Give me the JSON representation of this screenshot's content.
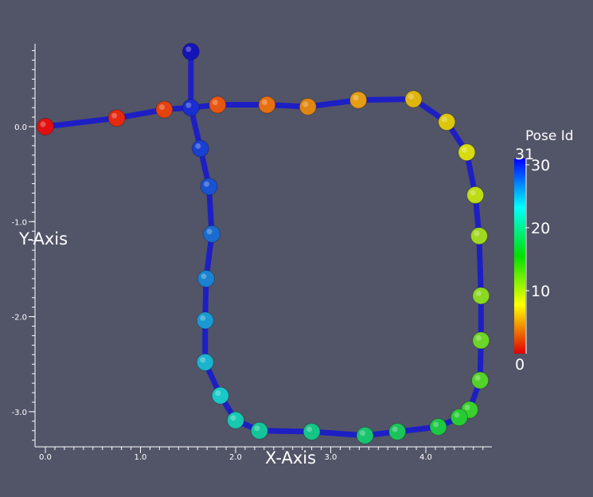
{
  "chart_data": {
    "type": "scatter",
    "xlabel": "X-Axis",
    "ylabel": "Y-Axis",
    "xlim": [
      0.0,
      4.6
    ],
    "ylim": [
      -3.35,
      0.85
    ],
    "x_ticks": [
      "0.0",
      "1.0",
      "2.0",
      "3.0",
      "4.0"
    ],
    "x_tick_values": [
      0.0,
      1.0,
      2.0,
      3.0,
      4.0
    ],
    "y_ticks": [
      "0.0",
      "-1.0",
      "-2.0",
      "-3.0"
    ],
    "y_tick_values": [
      0.0,
      -1.0,
      -2.0,
      -3.0
    ],
    "grid": false,
    "series": [
      {
        "points": [
          {
            "id": 0,
            "x": 0.0,
            "y": 0.0
          },
          {
            "id": 1,
            "x": 0.75,
            "y": 0.09
          },
          {
            "id": 2,
            "x": 1.25,
            "y": 0.18
          },
          {
            "id": 3,
            "x": 1.81,
            "y": 0.23
          },
          {
            "id": 4,
            "x": 2.33,
            "y": 0.23
          },
          {
            "id": 5,
            "x": 2.76,
            "y": 0.21
          },
          {
            "id": 6,
            "x": 3.29,
            "y": 0.28
          },
          {
            "id": 7,
            "x": 3.87,
            "y": 0.29
          },
          {
            "id": 8,
            "x": 4.22,
            "y": 0.05
          },
          {
            "id": 9,
            "x": 4.43,
            "y": -0.27
          },
          {
            "id": 10,
            "x": 4.52,
            "y": -0.72
          },
          {
            "id": 11,
            "x": 4.56,
            "y": -1.15
          },
          {
            "id": 12,
            "x": 4.58,
            "y": -1.78
          },
          {
            "id": 13,
            "x": 4.58,
            "y": -2.25
          },
          {
            "id": 14,
            "x": 4.57,
            "y": -2.67
          },
          {
            "id": 15,
            "x": 4.46,
            "y": -2.98
          },
          {
            "id": 16,
            "x": 4.35,
            "y": -3.06
          },
          {
            "id": 17,
            "x": 4.13,
            "y": -3.16
          },
          {
            "id": 18,
            "x": 3.7,
            "y": -3.21
          },
          {
            "id": 19,
            "x": 3.36,
            "y": -3.25
          },
          {
            "id": 20,
            "x": 2.8,
            "y": -3.21
          },
          {
            "id": 21,
            "x": 2.25,
            "y": -3.2
          },
          {
            "id": 22,
            "x": 2.0,
            "y": -3.09
          },
          {
            "id": 23,
            "x": 1.84,
            "y": -2.83
          },
          {
            "id": 24,
            "x": 1.68,
            "y": -2.48
          },
          {
            "id": 25,
            "x": 1.68,
            "y": -2.04
          },
          {
            "id": 26,
            "x": 1.69,
            "y": -1.6
          },
          {
            "id": 27,
            "x": 1.75,
            "y": -1.13
          },
          {
            "id": 28,
            "x": 1.72,
            "y": -0.63
          },
          {
            "id": 29,
            "x": 1.63,
            "y": -0.23
          },
          {
            "id": 30,
            "x": 1.53,
            "y": 0.2
          },
          {
            "id": 31,
            "x": 1.53,
            "y": 0.79
          }
        ],
        "edges": [
          [
            0,
            1
          ],
          [
            1,
            2
          ],
          [
            2,
            30
          ],
          [
            30,
            3
          ],
          [
            3,
            4
          ],
          [
            4,
            5
          ],
          [
            5,
            6
          ],
          [
            6,
            7
          ],
          [
            7,
            8
          ],
          [
            8,
            9
          ],
          [
            9,
            10
          ],
          [
            10,
            11
          ],
          [
            11,
            12
          ],
          [
            12,
            13
          ],
          [
            13,
            14
          ],
          [
            14,
            15
          ],
          [
            15,
            16
          ],
          [
            16,
            17
          ],
          [
            17,
            18
          ],
          [
            18,
            19
          ],
          [
            19,
            20
          ],
          [
            20,
            21
          ],
          [
            21,
            22
          ],
          [
            22,
            23
          ],
          [
            23,
            24
          ],
          [
            24,
            25
          ],
          [
            25,
            26
          ],
          [
            26,
            27
          ],
          [
            27,
            28
          ],
          [
            28,
            29
          ],
          [
            29,
            30
          ],
          [
            30,
            31
          ]
        ],
        "edge_color": "#1d1fc4",
        "point_colors": [
          "#e01010",
          "#e4290e",
          "#e4420f",
          "#e65610",
          "#e66f10",
          "#e08612",
          "#e69e12",
          "#deb40f",
          "#dcc80a",
          "#d8dc10",
          "#bedc16",
          "#a0d820",
          "#8ad820",
          "#6ed428",
          "#52d22a",
          "#3cd02e",
          "#26cc34",
          "#1cc844",
          "#1ac45a",
          "#18c46e",
          "#16c487",
          "#16c49c",
          "#18c8b0",
          "#1ac8c8",
          "#1ab4cc",
          "#1a9ad0",
          "#1a82d0",
          "#1a6cd0",
          "#1a52d0",
          "#1a40d0",
          "#1a2ed0",
          "#1414b8"
        ]
      }
    ],
    "legend": {
      "title": "Pose Id",
      "max_label": "31",
      "min_label": "0",
      "tick_labels": [
        "30",
        "20",
        "10"
      ],
      "tick_values": [
        30,
        20,
        10
      ],
      "range": [
        0,
        31
      ],
      "gradient": [
        "#e00000",
        "#ffff00",
        "#00e000",
        "#00ffff",
        "#0000ff"
      ],
      "placement": "right"
    }
  }
}
